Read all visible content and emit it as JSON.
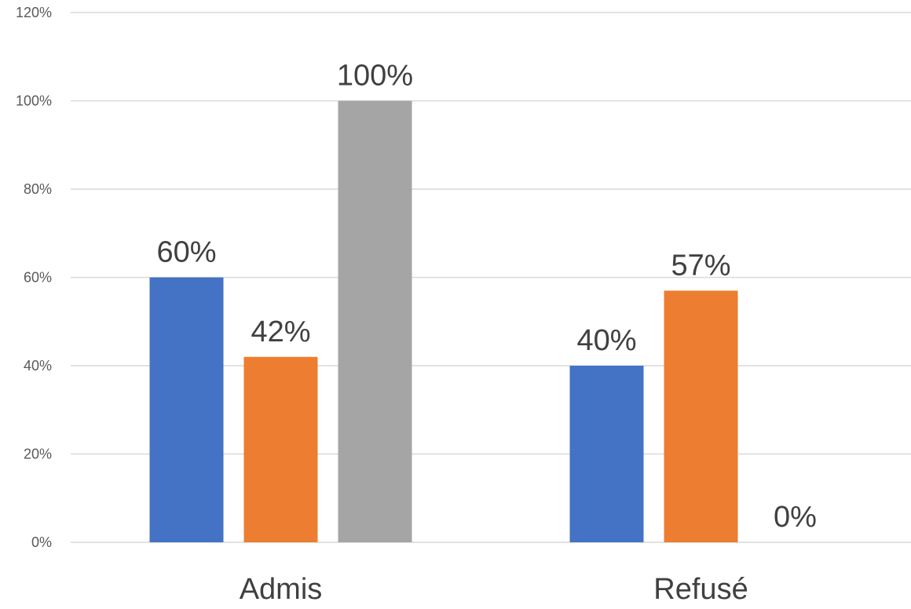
{
  "chart_data": {
    "type": "bar",
    "title": "",
    "categories": [
      "Admis",
      "Refusé"
    ],
    "series": [
      {
        "values": [
          0.6,
          0.4
        ],
        "labels": [
          "60%",
          "40%"
        ],
        "color": "#4472C4"
      },
      {
        "values": [
          0.42,
          0.57
        ],
        "labels": [
          "42%",
          "57%"
        ],
        "color": "#ED7D31"
      },
      {
        "values": [
          1.0,
          0.0
        ],
        "labels": [
          "100%",
          "0%"
        ],
        "color": "#A5A5A5"
      }
    ],
    "ylim": [
      0,
      1.2
    ],
    "yticks": [
      {
        "value": 0.0,
        "label": "0%"
      },
      {
        "value": 0.2,
        "label": "20%"
      },
      {
        "value": 0.4,
        "label": "40%"
      },
      {
        "value": 0.6,
        "label": "60%"
      },
      {
        "value": 0.8,
        "label": "80%"
      },
      {
        "value": 1.0,
        "label": "100%"
      },
      {
        "value": 1.2,
        "label": "120%"
      }
    ],
    "grid": true,
    "legend": "none"
  }
}
